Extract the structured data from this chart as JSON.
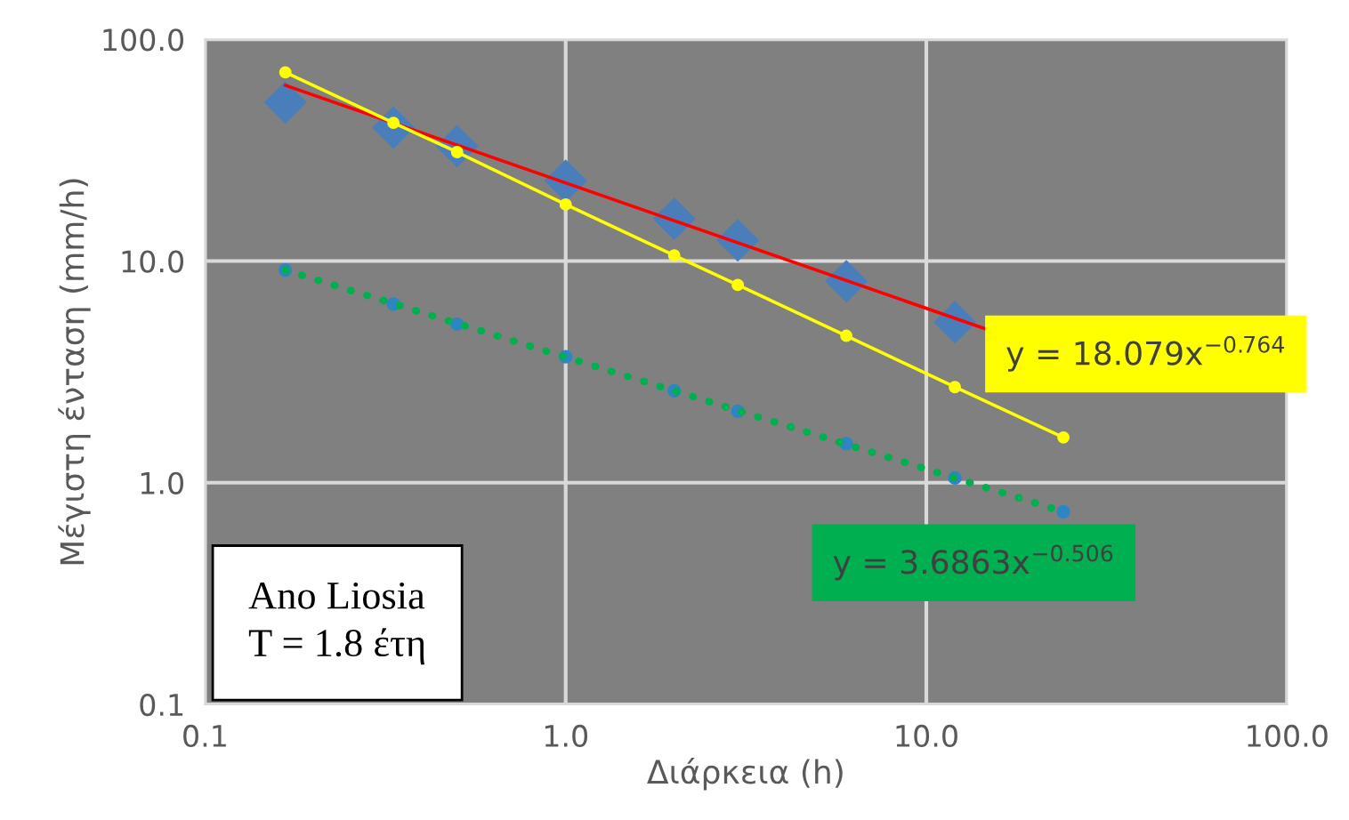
{
  "chart_data": {
    "type": "scatter",
    "xlabel": "Διάρκεια (h)",
    "ylabel": "Μέγιστη ένταση (mm/h)",
    "log": "xy",
    "grid": true,
    "legend": false,
    "xlim": [
      0.1,
      100
    ],
    "xticks": [
      0.1,
      {
        "value": 1,
        "label": "1.0"
      },
      {
        "value": 10,
        "label": "10.0"
      },
      {
        "value": 100,
        "label": "100.0"
      }
    ],
    "ylim": [
      0.1,
      100
    ],
    "yticks": [
      0.1,
      {
        "value": 1,
        "label": "1.0"
      },
      {
        "value": 10,
        "label": "10.0"
      },
      {
        "value": 100,
        "label": "100.0"
      }
    ],
    "series": [
      {
        "type": "line",
        "color": "#ff0000",
        "marker": "none",
        "line_style": "solid",
        "x": [
          0.167,
          14.8
        ],
        "values": [
          62,
          4.9
        ]
      },
      {
        "color": "#4a7ebb",
        "marker": "diamond",
        "x": [
          0.167,
          0.333,
          0.5,
          1,
          2,
          3,
          6,
          12
        ],
        "values": [
          52,
          40,
          33,
          23,
          15.5,
          12.4,
          8.1,
          5.3
        ]
      },
      {
        "type": "line",
        "color": "#ffff00",
        "marker": "circle",
        "line_style": "solid",
        "x": [
          0.167,
          0.333,
          0.5,
          1,
          2,
          3,
          6,
          12,
          24
        ],
        "values": [
          71,
          42,
          31,
          18,
          10.6,
          7.8,
          4.6,
          2.7,
          1.6
        ]
      },
      {
        "type": "line",
        "color": "#00b050",
        "marker": "none",
        "line_style": "dotted",
        "x": [
          0.167,
          24
        ],
        "values": [
          9.1,
          0.74
        ]
      },
      {
        "color": "#2e86c1",
        "marker": "circle",
        "x": [
          0.167,
          0.333,
          0.5,
          1,
          2,
          3,
          6,
          12,
          24
        ],
        "values": [
          9.1,
          6.4,
          5.2,
          3.7,
          2.6,
          2.1,
          1.5,
          1.05,
          0.74
        ]
      }
    ],
    "annotations": [
      "y = 18.079x$^{−0.764}$",
      "y = 3.6863x$^{−0.506}$",
      "Ano Liosia\nT = 1.8 έτη"
    ]
  }
}
